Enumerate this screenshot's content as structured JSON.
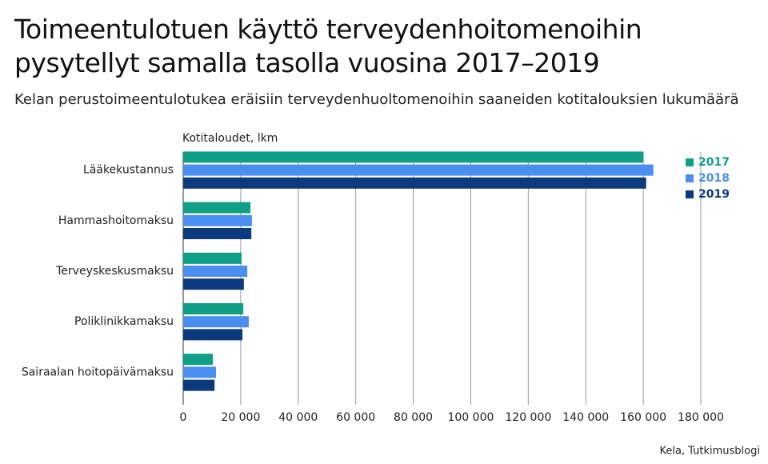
{
  "chart_data": {
    "type": "hbar",
    "title": "Toimeentulotuen käyttö terveydenhoitomenoihin pysytellyt samalla tasolla vuosina 2017–2019",
    "subtitle": "Kelan perustoimeentulotukea eräisiin terveydenhuoltomenoihin saaneiden kotitalouksien lukumäärä",
    "x_label": "Kotitaloudet, lkm",
    "source": "Kela, Tutkimusblogi",
    "categories": [
      "Lääkekustannus",
      "Hammashoitomaksu",
      "Terveyskeskusmaksu",
      "Poliklinikkamaksu",
      "Sairaalan hoitopäivämaksu"
    ],
    "series": [
      {
        "name": "2017",
        "color": "#0f9e86",
        "values": [
          160000,
          23400,
          20300,
          20900,
          10300
        ]
      },
      {
        "name": "2018",
        "color": "#4a8ef0",
        "values": [
          163500,
          23900,
          22300,
          22800,
          11400
        ]
      },
      {
        "name": "2019",
        "color": "#0c3a7e",
        "values": [
          161000,
          23700,
          21100,
          20600,
          10900
        ]
      }
    ],
    "xlim": [
      0,
      180000
    ],
    "xticks": [
      0,
      {
        "value": 20000,
        "label": "20 000"
      },
      {
        "value": 40000,
        "label": "40 000"
      },
      {
        "value": 60000,
        "label": "60 000"
      },
      {
        "value": 80000,
        "label": "80 000"
      },
      {
        "value": 100000,
        "label": "100 000"
      },
      {
        "value": 120000,
        "label": "120 000"
      },
      {
        "value": 140000,
        "label": "140 000"
      },
      {
        "value": 160000,
        "label": "160 000"
      },
      {
        "value": 180000,
        "label": "180 000"
      }
    ],
    "grid": true,
    "legend": "top-right"
  }
}
